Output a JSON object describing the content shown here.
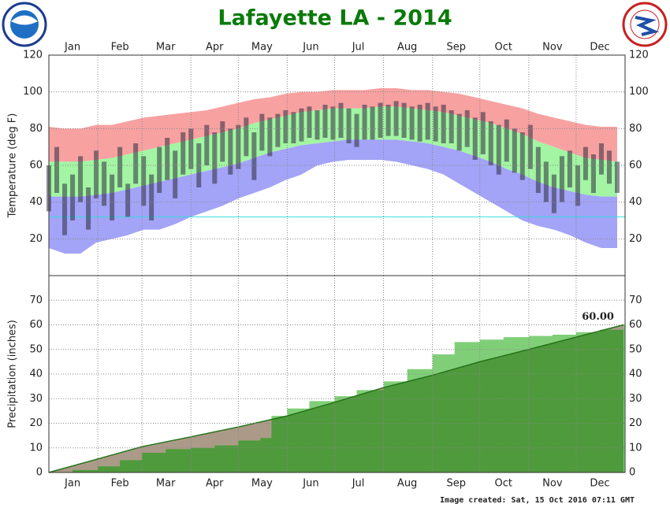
{
  "title": "Lafayette LA - 2014",
  "note": "Image created: Sat, 15 Oct 2016 07:11 GMT",
  "chart_data": [
    {
      "type": "temperature-range",
      "ylabel": "Temperature (deg F)",
      "xlim": [
        1,
        366
      ],
      "xticks": [
        {
          "value": 16,
          "label": "Jan"
        },
        {
          "value": 46,
          "label": "Feb"
        },
        {
          "value": 75,
          "label": "Mar"
        },
        {
          "value": 106,
          "label": "Apr"
        },
        {
          "value": 136,
          "label": "May"
        },
        {
          "value": 167,
          "label": "Jun"
        },
        {
          "value": 197,
          "label": "Jul"
        },
        {
          "value": 228,
          "label": "Aug"
        },
        {
          "value": 259,
          "label": "Sep"
        },
        {
          "value": 289,
          "label": "Oct"
        },
        {
          "value": 320,
          "label": "Nov"
        },
        {
          "value": 350,
          "label": "Dec"
        }
      ],
      "xgrid": [
        32,
        60,
        91,
        121,
        152,
        182,
        213,
        244,
        274,
        305,
        335
      ],
      "ylim": [
        0,
        120
      ],
      "yticks": [
        20,
        40,
        60,
        80,
        100,
        120
      ],
      "grid": true,
      "x": [
        1,
        11,
        21,
        31,
        41,
        51,
        61,
        71,
        81,
        91,
        101,
        111,
        121,
        131,
        141,
        151,
        161,
        171,
        181,
        191,
        201,
        211,
        221,
        231,
        241,
        251,
        261,
        271,
        281,
        291,
        301,
        311,
        321,
        331,
        341,
        351,
        361
      ],
      "levels": [
        [
          81,
          80,
          80,
          82,
          82,
          84,
          86,
          87,
          88,
          89,
          90,
          92,
          94,
          96,
          97,
          99,
          100,
          100,
          101,
          101,
          101,
          102,
          102,
          101,
          101,
          100,
          99,
          97,
          95,
          93,
          91,
          88,
          86,
          84,
          82,
          81,
          81
        ],
        [
          62,
          62,
          62,
          63,
          64,
          66,
          68,
          70,
          72,
          74,
          76,
          78,
          80,
          83,
          85,
          87,
          89,
          90,
          91,
          91,
          91,
          92,
          92,
          91,
          90,
          89,
          87,
          85,
          83,
          80,
          77,
          73,
          70,
          67,
          64,
          63,
          62
        ],
        [
          43,
          43,
          43,
          44,
          45,
          47,
          49,
          51,
          53,
          55,
          57,
          59,
          61,
          64,
          67,
          69,
          71,
          72,
          73,
          74,
          74,
          74,
          74,
          73,
          72,
          70,
          68,
          65,
          62,
          58,
          55,
          51,
          48,
          46,
          44,
          43,
          43
        ],
        [
          15,
          12,
          12,
          18,
          20,
          22,
          25,
          25,
          28,
          32,
          35,
          38,
          42,
          45,
          48,
          52,
          55,
          60,
          62,
          63,
          63,
          63,
          62,
          60,
          58,
          55,
          50,
          45,
          40,
          35,
          30,
          27,
          25,
          22,
          18,
          15,
          15
        ]
      ],
      "band_colors": [
        "#f7a1a1",
        "#a3f5a3",
        "#a3a3f7"
      ],
      "freeze_line": {
        "value": 32,
        "color": "#33e0e0"
      },
      "observed": {
        "color": "#2e2e3e",
        "x": [
          1,
          6,
          11,
          16,
          21,
          26,
          31,
          36,
          41,
          46,
          51,
          56,
          61,
          66,
          71,
          76,
          81,
          86,
          91,
          96,
          101,
          106,
          111,
          116,
          121,
          126,
          131,
          136,
          141,
          146,
          151,
          156,
          161,
          166,
          171,
          176,
          181,
          186,
          191,
          196,
          201,
          206,
          211,
          216,
          221,
          226,
          231,
          236,
          241,
          246,
          251,
          256,
          261,
          266,
          271,
          276,
          281,
          286,
          291,
          296,
          301,
          306,
          311,
          316,
          321,
          326,
          331,
          336,
          341,
          346,
          351,
          356,
          361
        ],
        "high": [
          60,
          70,
          50,
          55,
          65,
          48,
          68,
          62,
          55,
          70,
          50,
          72,
          65,
          55,
          70,
          75,
          68,
          78,
          80,
          72,
          82,
          78,
          84,
          80,
          82,
          86,
          78,
          88,
          86,
          88,
          90,
          89,
          91,
          92,
          90,
          93,
          92,
          94,
          91,
          88,
          93,
          92,
          94,
          93,
          95,
          94,
          92,
          93,
          94,
          92,
          93,
          90,
          88,
          90,
          86,
          89,
          84,
          82,
          85,
          80,
          78,
          82,
          70,
          62,
          55,
          65,
          68,
          60,
          70,
          66,
          72,
          68,
          62
        ],
        "low": [
          35,
          45,
          22,
          30,
          40,
          25,
          42,
          38,
          30,
          48,
          32,
          50,
          38,
          30,
          45,
          52,
          42,
          55,
          58,
          48,
          60,
          50,
          62,
          55,
          58,
          65,
          52,
          68,
          65,
          70,
          72,
          72,
          73,
          75,
          74,
          75,
          74,
          75,
          72,
          70,
          74,
          74,
          75,
          76,
          76,
          75,
          74,
          73,
          74,
          73,
          72,
          72,
          68,
          70,
          63,
          66,
          60,
          55,
          62,
          56,
          52,
          58,
          45,
          40,
          34,
          40,
          48,
          38,
          52,
          45,
          55,
          50,
          45
        ]
      }
    },
    {
      "type": "cumulative-precip",
      "ylabel": "Precipitation (inches)",
      "xlim": [
        1,
        366
      ],
      "xticks": [
        {
          "value": 16,
          "label": "Jan"
        },
        {
          "value": 46,
          "label": "Feb"
        },
        {
          "value": 75,
          "label": "Mar"
        },
        {
          "value": 106,
          "label": "Apr"
        },
        {
          "value": 136,
          "label": "May"
        },
        {
          "value": 167,
          "label": "Jun"
        },
        {
          "value": 197,
          "label": "Jul"
        },
        {
          "value": 228,
          "label": "Aug"
        },
        {
          "value": 259,
          "label": "Sep"
        },
        {
          "value": 289,
          "label": "Oct"
        },
        {
          "value": 320,
          "label": "Nov"
        },
        {
          "value": 350,
          "label": "Dec"
        }
      ],
      "xgrid": [
        32,
        60,
        91,
        121,
        152,
        182,
        213,
        244,
        274,
        305,
        335
      ],
      "ylim": [
        0,
        80
      ],
      "yticks": [
        0,
        10,
        20,
        30,
        40,
        50,
        60,
        70
      ],
      "grid": true,
      "observed": {
        "surplus_color": "#80cf78",
        "color": "#4f9a3c",
        "x": [
          1,
          16,
          32,
          46,
          60,
          75,
          91,
          106,
          121,
          135,
          141,
          142,
          152,
          166,
          182,
          196,
          213,
          228,
          244,
          258,
          274,
          289,
          305,
          320,
          335,
          350,
          365
        ],
        "values": [
          0,
          1,
          2.5,
          5,
          8,
          9.5,
          10,
          11,
          13,
          14,
          14,
          23,
          26,
          29,
          31,
          33.5,
          37,
          42,
          48,
          53,
          54,
          55,
          55.5,
          56,
          57,
          58,
          60
        ],
        "value_labels": [
          null,
          null,
          null,
          null,
          null,
          null,
          null,
          null,
          null,
          null,
          null,
          null,
          null,
          null,
          null,
          null,
          null,
          null,
          null,
          null,
          null,
          null,
          null,
          null,
          null,
          null,
          "60.00"
        ]
      },
      "normal": {
        "deficit_color": "#ab9a88",
        "line_color": "#237318",
        "x": [
          1,
          32,
          60,
          91,
          121,
          152,
          182,
          213,
          244,
          274,
          305,
          335,
          365
        ],
        "values": [
          0,
          5.5,
          10.5,
          14.5,
          18.5,
          23,
          28.5,
          34.5,
          39.5,
          45,
          50,
          55,
          60
        ]
      }
    }
  ]
}
